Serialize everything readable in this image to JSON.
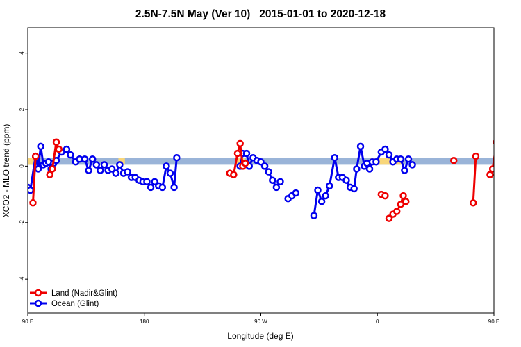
{
  "chart_data": {
    "type": "line",
    "title": "2.5N-7.5N May (Ver 10)   2015-01-01 to 2020-12-18",
    "xlabel": "Longitude (deg E)",
    "ylabel": "XCO2 - MLO trend (ppm)",
    "xlim": [
      90,
      450
    ],
    "ylim": [
      -5.2,
      4.9
    ],
    "x_ticks": [
      {
        "value": 90,
        "label": "90 E"
      },
      {
        "value": 180,
        "label": "180"
      },
      {
        "value": 270,
        "label": "90 W"
      },
      {
        "value": 360,
        "label": "0"
      },
      {
        "value": 450,
        "label": "90 E"
      },
      {
        "value": 540,
        "label": "180"
      }
    ],
    "y_ticks": [
      {
        "value": -4,
        "label": "-4"
      },
      {
        "value": -2,
        "label": "-2"
      },
      {
        "value": 0,
        "label": "0"
      },
      {
        "value": 2,
        "label": "2"
      },
      {
        "value": 4,
        "label": "4"
      }
    ],
    "band": {
      "y_range": [
        0.05,
        0.3
      ],
      "color": "#9ab4d8",
      "land_color": "#f8d67a"
    },
    "land_regions": [
      [
        90,
        96
      ],
      [
        160,
        165
      ],
      [
        251,
        258
      ],
      [
        354,
        380
      ],
      [
        450,
        456
      ]
    ],
    "legend": {
      "position": "bottom-left"
    },
    "series": [
      {
        "name": "Land (Nadir&Glint)",
        "color": "#ee0000",
        "segments": [
          [
            [
              94,
              -1.3
            ],
            [
              96,
              0.35
            ]
          ],
          [
            [
              107,
              -0.3
            ],
            [
              109,
              -0.1
            ],
            [
              112,
              0.85
            ],
            [
              114,
              0.6
            ]
          ],
          [
            [
              246,
              -0.25
            ],
            [
              249,
              -0.3
            ],
            [
              252,
              0.45
            ],
            [
              254,
              0.8
            ],
            [
              256,
              0
            ],
            [
              258,
              0.1
            ]
          ],
          [
            [
              369,
              -1.85
            ],
            [
              372,
              -1.7
            ],
            [
              375,
              -1.6
            ],
            [
              378,
              -1.35
            ],
            [
              380,
              -1.05
            ],
            [
              382,
              -1.25
            ]
          ],
          [
            [
              363,
              -1.0
            ],
            [
              366,
              -1.05
            ]
          ],
          [
            [
              419,
              0.2
            ]
          ],
          [
            [
              434,
              -1.3
            ],
            [
              436,
              0.35
            ]
          ],
          [
            [
              447,
              -0.3
            ],
            [
              449,
              -0.1
            ],
            [
              452,
              0.85
            ],
            [
              454,
              0.6
            ]
          ]
        ]
      },
      {
        "name": "Ocean (Glint)",
        "color": "#0000ee",
        "segments": [
          [
            [
              90,
              -0.75
            ],
            [
              92,
              -0.85
            ],
            [
              96,
              0.35
            ],
            [
              98,
              -0.1
            ],
            [
              100,
              0.7
            ],
            [
              102,
              0.05
            ],
            [
              104,
              0.1
            ],
            [
              106,
              0.15
            ],
            [
              108,
              -0.1
            ],
            [
              110,
              0.1
            ],
            [
              112,
              0.2
            ],
            [
              116,
              0.5
            ],
            [
              120,
              0.6
            ],
            [
              123,
              0.4
            ],
            [
              127,
              0.15
            ],
            [
              130,
              0.25
            ],
            [
              134,
              0.25
            ],
            [
              137,
              -0.15
            ],
            [
              140,
              0.25
            ],
            [
              143,
              0.05
            ],
            [
              146,
              -0.15
            ],
            [
              149,
              0.05
            ],
            [
              152,
              -0.15
            ],
            [
              155,
              -0.1
            ],
            [
              158,
              -0.25
            ],
            [
              161,
              0.05
            ],
            [
              164,
              -0.25
            ],
            [
              167,
              -0.2
            ],
            [
              170,
              -0.4
            ],
            [
              173,
              -0.4
            ],
            [
              176,
              -0.5
            ],
            [
              179,
              -0.55
            ],
            [
              182,
              -0.55
            ],
            [
              185,
              -0.75
            ],
            [
              188,
              -0.55
            ],
            [
              191,
              -0.7
            ],
            [
              194,
              -0.75
            ],
            [
              197,
              0
            ],
            [
              200,
              -0.25
            ],
            [
              203,
              -0.75
            ],
            [
              205,
              0.3
            ]
          ],
          [
            [
              254,
              0
            ],
            [
              256,
              0.45
            ],
            [
              259,
              0.45
            ],
            [
              261,
              0
            ],
            [
              264,
              0.3
            ],
            [
              267,
              0.2
            ],
            [
              270,
              0.15
            ],
            [
              273,
              0
            ],
            [
              276,
              -0.2
            ],
            [
              279,
              -0.5
            ],
            [
              282,
              -0.75
            ],
            [
              285,
              -0.55
            ]
          ],
          [
            [
              291,
              -1.15
            ],
            [
              294,
              -1.05
            ],
            [
              297,
              -0.95
            ]
          ],
          [
            [
              311,
              -1.75
            ],
            [
              314,
              -0.85
            ],
            [
              317,
              -1.25
            ],
            [
              320,
              -1.05
            ],
            [
              323,
              -0.7
            ],
            [
              327,
              0.3
            ],
            [
              330,
              -0.4
            ],
            [
              333,
              -0.4
            ],
            [
              336,
              -0.5
            ],
            [
              339,
              -0.75
            ],
            [
              342,
              -0.8
            ],
            [
              344,
              -0.1
            ],
            [
              347,
              0.7
            ],
            [
              350,
              0
            ],
            [
              352,
              0.1
            ],
            [
              354,
              -0.1
            ],
            [
              356,
              0.15
            ],
            [
              359,
              0.15
            ],
            [
              363,
              0.5
            ],
            [
              366,
              0.6
            ],
            [
              369,
              0.4
            ],
            [
              372,
              0.15
            ],
            [
              375,
              0.25
            ],
            [
              378,
              0.25
            ],
            [
              381,
              -0.15
            ],
            [
              384,
              0.25
            ],
            [
              387,
              0.05
            ]
          ]
        ]
      }
    ]
  }
}
